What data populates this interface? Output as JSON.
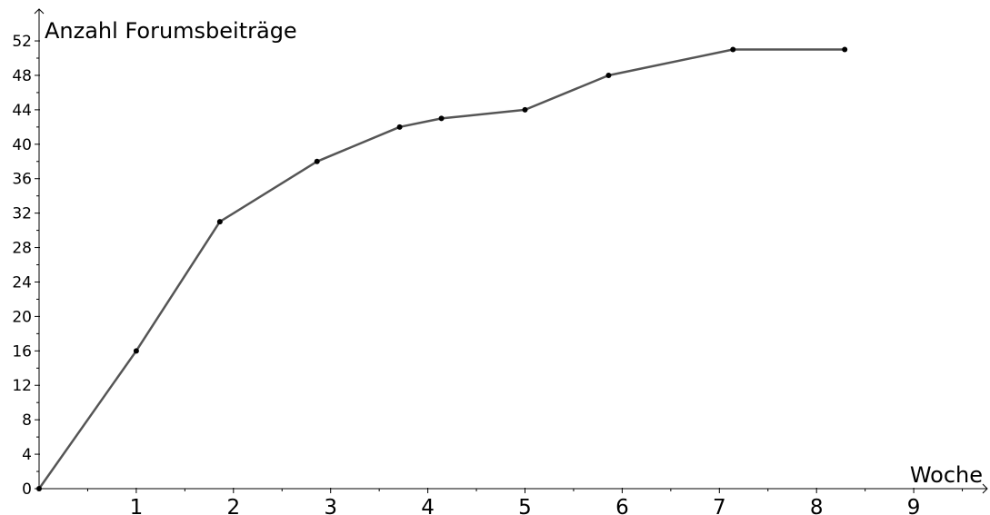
{
  "chart_data": {
    "type": "line",
    "title": "",
    "xlabel": "Woche",
    "ylabel": "Anzahl Forumsbeiträge",
    "xlim": [
      0,
      9.8
    ],
    "ylim": [
      0,
      52
    ],
    "x_ticks": [
      1,
      2,
      3,
      4,
      5,
      6,
      7,
      8,
      9
    ],
    "y_ticks": [
      0,
      4,
      8,
      12,
      16,
      20,
      24,
      28,
      32,
      36,
      40,
      44,
      48,
      52
    ],
    "grid": false,
    "colors": {
      "line": "#555555",
      "points": "#000000",
      "axis": "#000000"
    },
    "series": [
      {
        "x": [
          0,
          1,
          1.86,
          2.86,
          3.71,
          4.14,
          5.0,
          5.86,
          7.14,
          8.29
        ],
        "y": [
          0,
          16,
          31,
          38,
          42,
          43,
          44,
          48,
          51,
          51
        ]
      }
    ]
  }
}
